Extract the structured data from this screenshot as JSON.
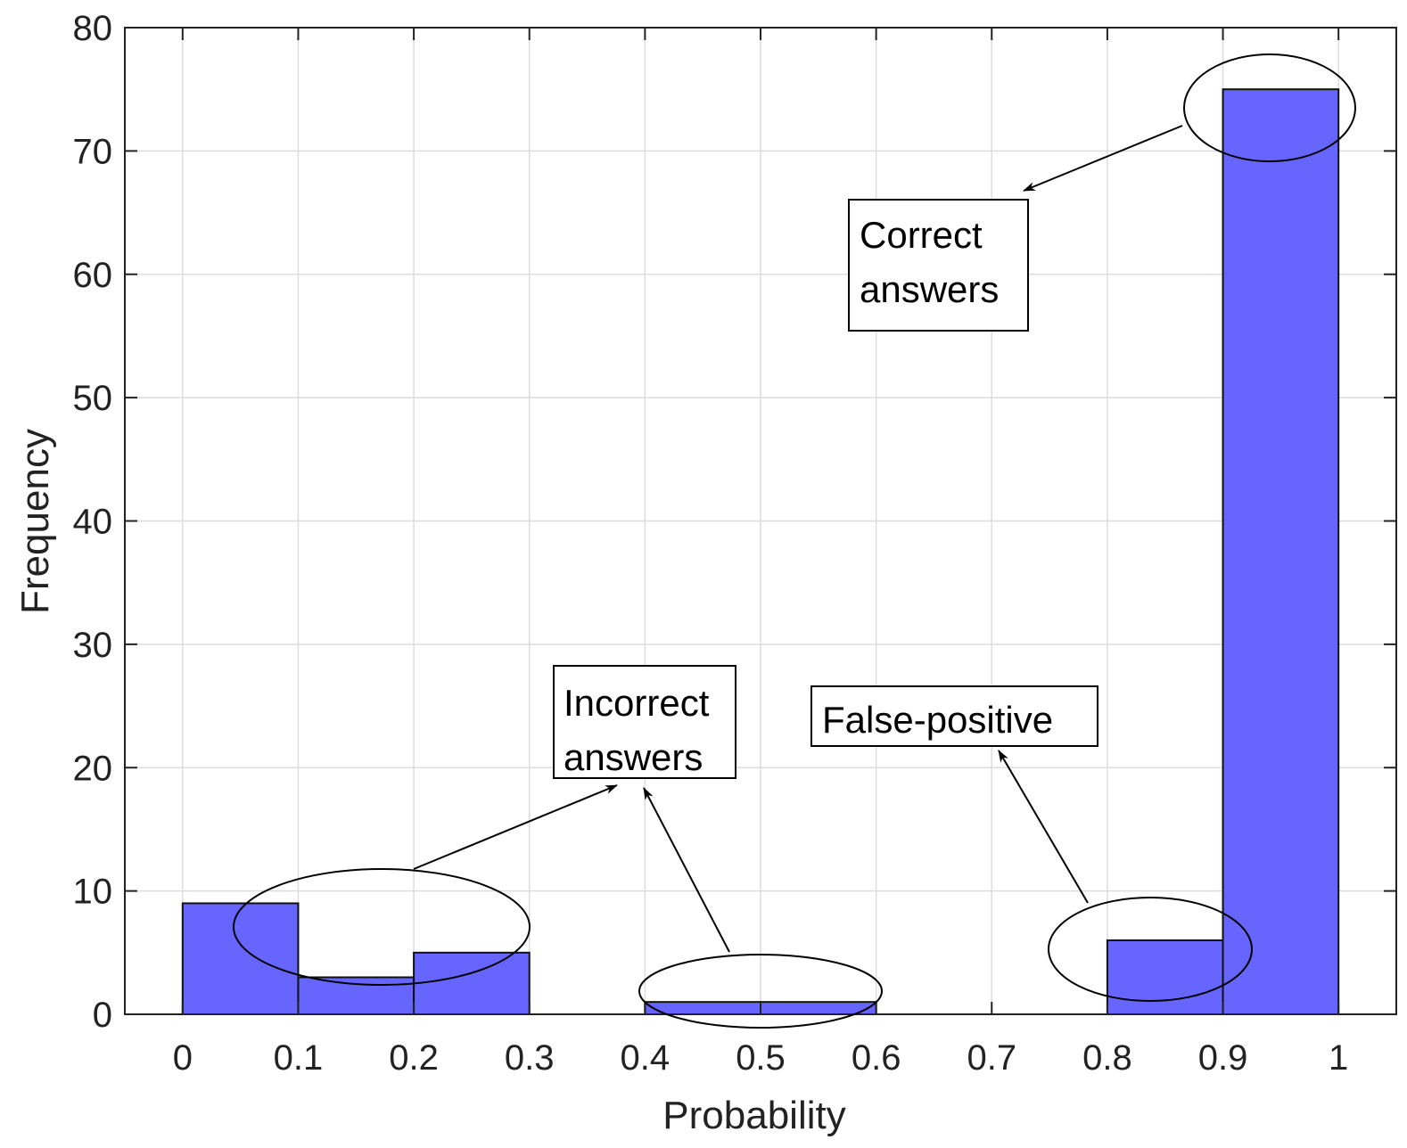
{
  "chart_data": {
    "type": "bar",
    "bin_edges": [
      0,
      0.1,
      0.2,
      0.3,
      0.4,
      0.5,
      0.6,
      0.7,
      0.8,
      0.9,
      1
    ],
    "values": [
      9,
      3,
      5,
      0,
      1,
      1,
      0,
      0,
      6,
      75
    ],
    "xlabel": "Probability",
    "ylabel": "Frequency",
    "xlim": [
      -0.05,
      1.05
    ],
    "ylim": [
      0,
      80
    ],
    "xticks": [
      0,
      0.1,
      0.2,
      0.3,
      0.4,
      0.5,
      0.6,
      0.7,
      0.8,
      0.9,
      1
    ],
    "xtick_labels": [
      "0",
      "0.1",
      "0.2",
      "0.3",
      "0.4",
      "0.5",
      "0.6",
      "0.7",
      "0.8",
      "0.9",
      "1"
    ],
    "yticks": [
      0,
      10,
      20,
      30,
      40,
      50,
      60,
      70,
      80
    ],
    "ytick_labels": [
      "0",
      "10",
      "20",
      "30",
      "40",
      "50",
      "60",
      "70",
      "80"
    ],
    "grid": true,
    "bar_color": "#6666ff",
    "annotations": [
      {
        "id": "correct",
        "lines": [
          "Correct",
          "answers"
        ]
      },
      {
        "id": "incorrect",
        "lines": [
          "Incorrect",
          "answers"
        ]
      },
      {
        "id": "false-positive",
        "lines": [
          "False-positive"
        ]
      }
    ]
  }
}
